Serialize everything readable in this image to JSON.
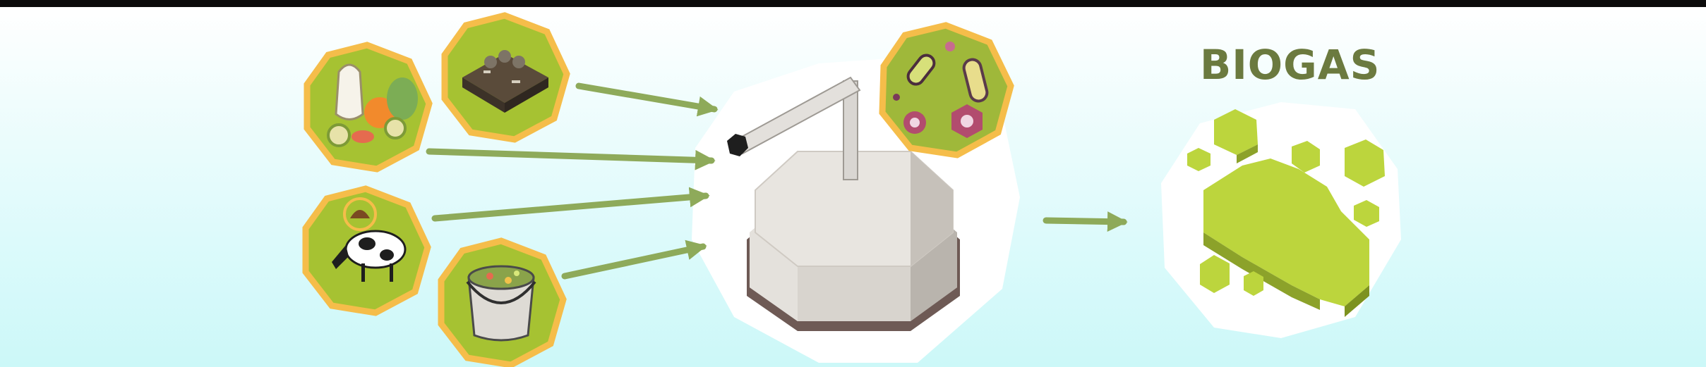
{
  "title": "BIOGAS",
  "colors": {
    "background_top": "#ffffff",
    "background_bottom": "#ccf8f8",
    "arrow": "#8eaa5a",
    "badge_border": "#f5bd4a",
    "badge_fill": "#a6c232",
    "tank": "#d9d5cf",
    "gas": "#b9d33b",
    "title": "#6b7a3f"
  },
  "inputs": [
    {
      "icon": "food-waste-icon"
    },
    {
      "icon": "sewage-sludge-icon"
    },
    {
      "icon": "cow-manure-icon"
    },
    {
      "icon": "slurry-bucket-icon"
    }
  ],
  "digester": {
    "icon": "digester-tank-icon",
    "badge": "bacteria-icon"
  },
  "output": {
    "icon": "gas-cloud-icon"
  }
}
